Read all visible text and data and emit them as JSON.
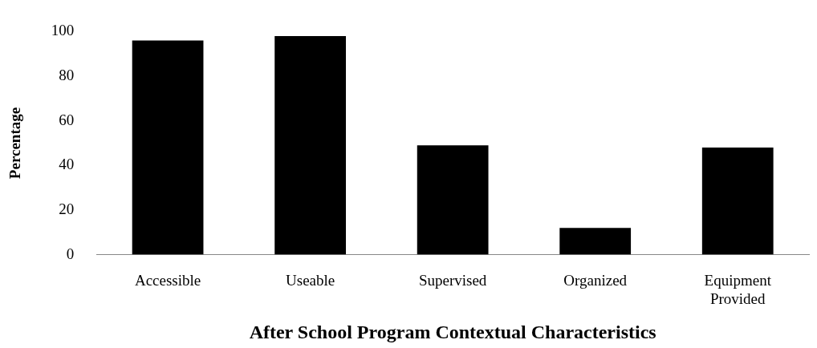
{
  "chart_data": {
    "type": "bar",
    "xlabel": "After School Program Contextual Characteristics",
    "ylabel": "Percentage",
    "categories": [
      "Accessible",
      "Useable",
      "Supervised",
      "Organized",
      "Equipment Provided"
    ],
    "values": [
      96,
      98,
      49,
      12,
      48
    ],
    "color": "#000000",
    "ylim": [
      0,
      100
    ],
    "yticks": [
      0,
      20,
      40,
      60,
      80,
      100
    ],
    "grid": false,
    "legend": false
  }
}
